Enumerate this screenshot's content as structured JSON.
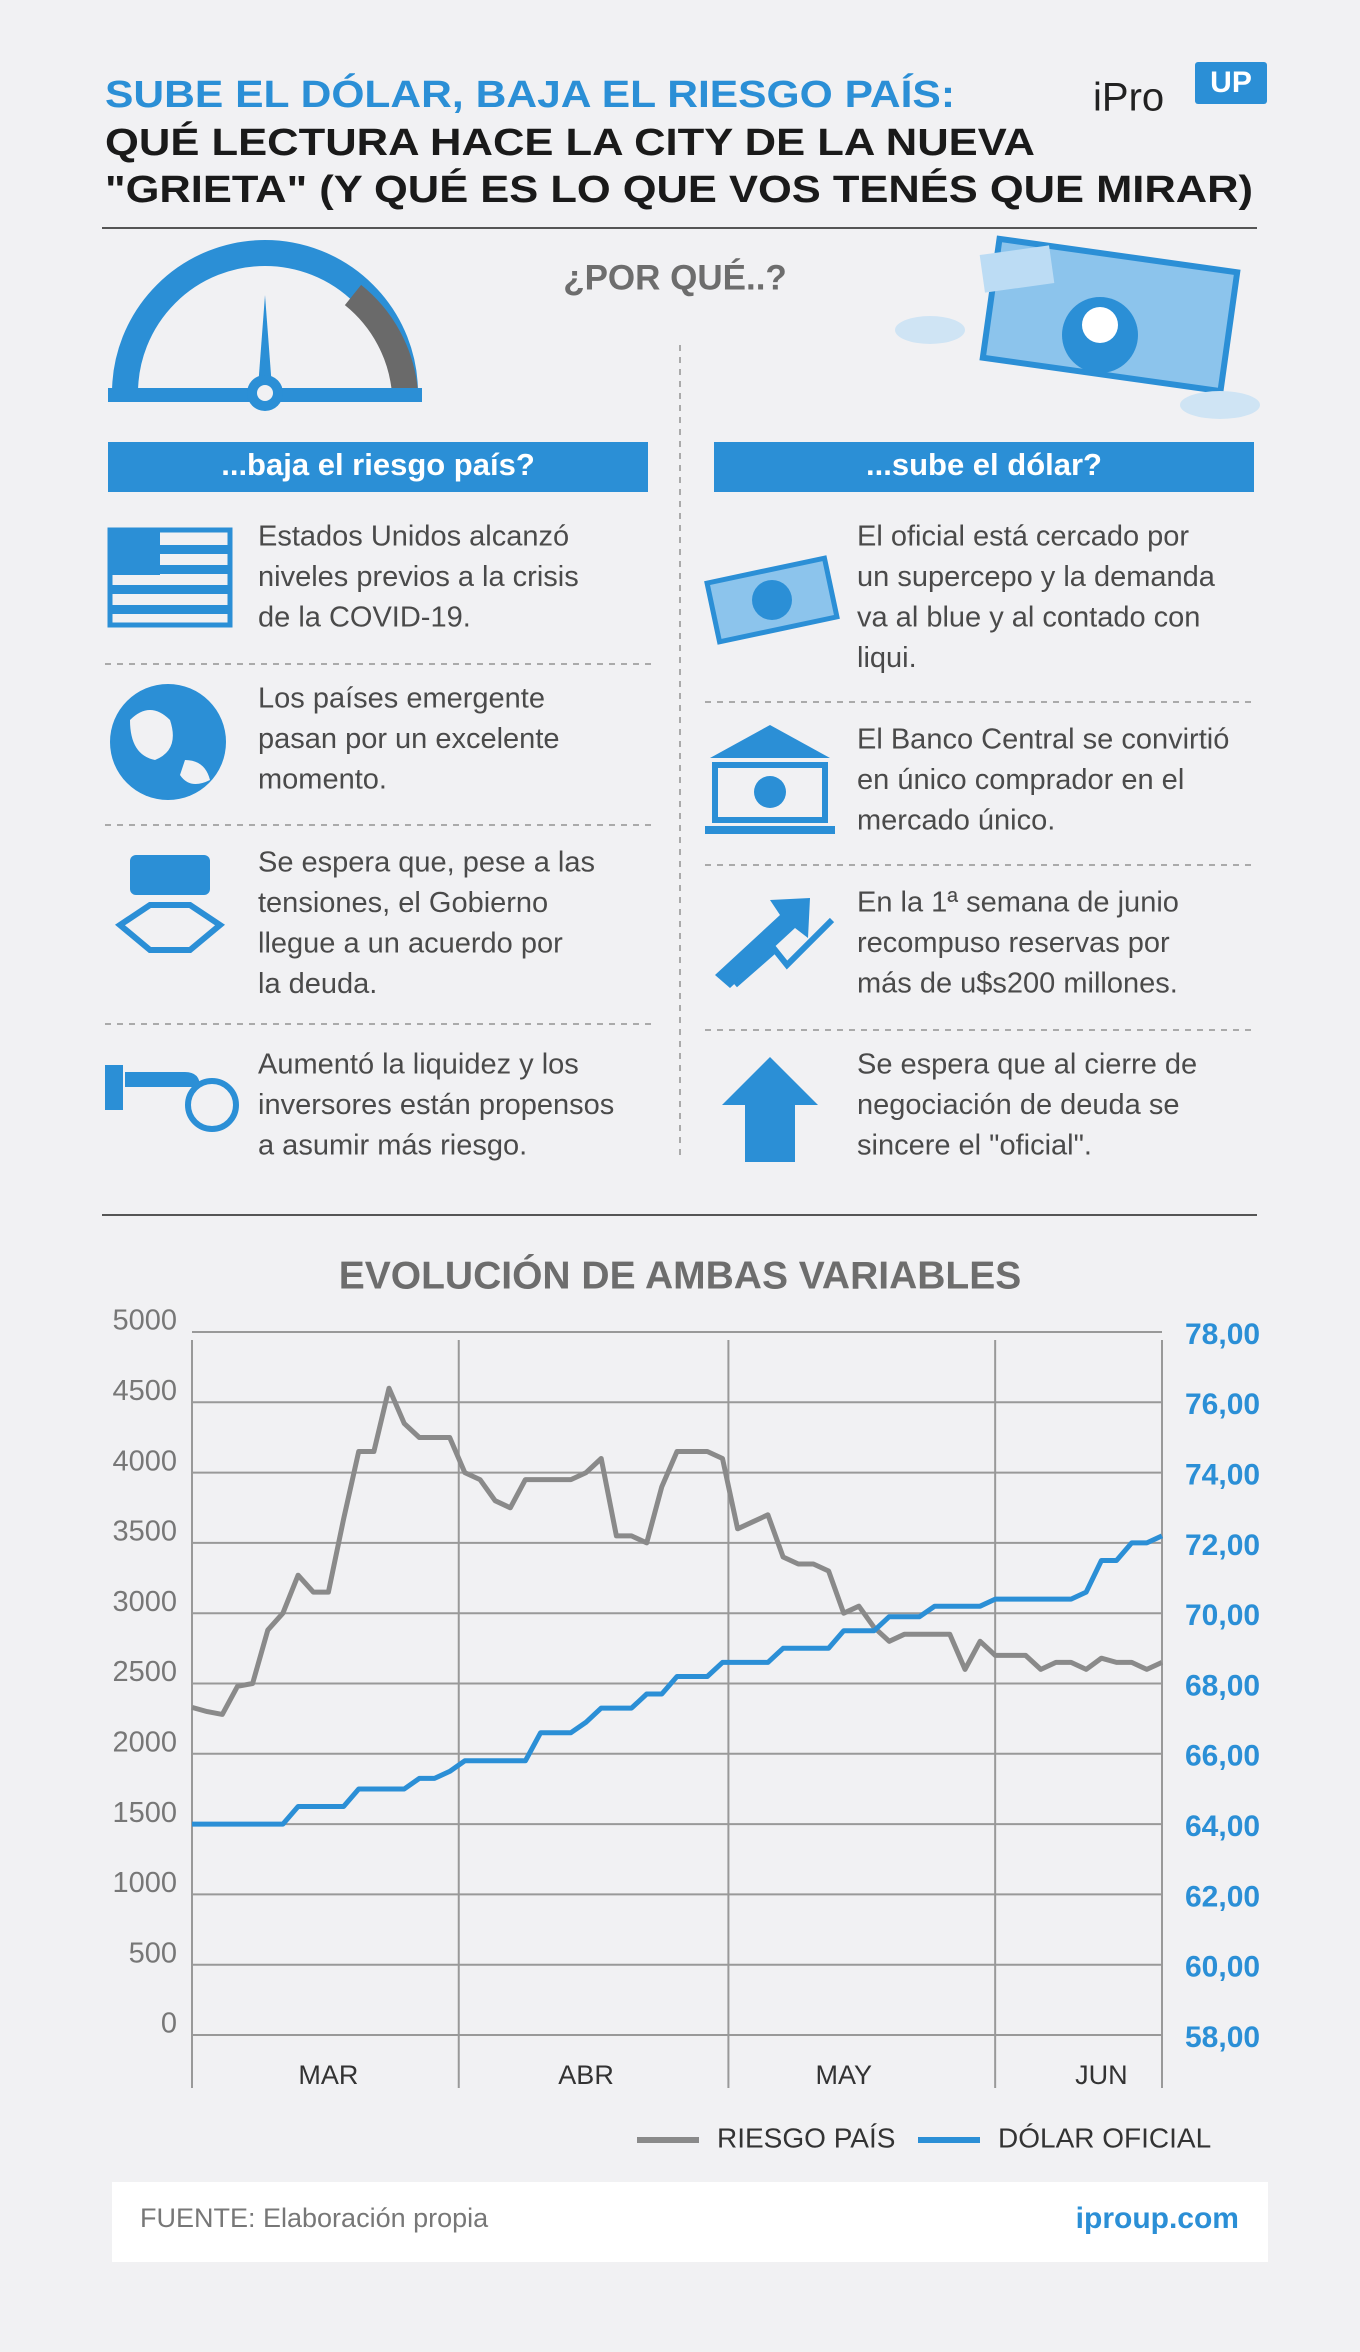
{
  "header": {
    "title_line1": "SUBE EL DÓLAR, BAJA EL RIESGO PAÍS:",
    "title_line2": "QUÉ LECTURA HACE LA CITY DE LA NUEVA",
    "title_line3": "\"GRIETA\" (Y QUÉ ES LO QUE VOS TENÉS QUE MIRAR)",
    "logo": "iPro",
    "logo_badge": "UP"
  },
  "question": "¿POR QUÉ..?",
  "left": {
    "heading": "...baja el riesgo país?",
    "items": [
      [
        "Estados Unidos alcanzó",
        "niveles previos a la crisis",
        "de la COVID-19."
      ],
      [
        "Los países emergente",
        "pasan por un excelente",
        "momento."
      ],
      [
        "Se espera que, pese a las",
        "tensiones, el Gobierno",
        "llegue a un acuerdo por",
        "la deuda."
      ],
      [
        "Aumentó la liquidez y los",
        "inversores están propensos",
        "a asumir más riesgo."
      ]
    ]
  },
  "right": {
    "heading": "...sube el dólar?",
    "items": [
      [
        "El oficial está cercado por",
        "un supercepo y la demanda",
        "va al blue y al contado con",
        "liqui."
      ],
      [
        "El Banco Central se convirtió",
        "en único comprador en el",
        "mercado único."
      ],
      [
        "En la 1ª semana de junio",
        "recompuso reservas por",
        "más de u$s200 millones."
      ],
      [
        "Se espera que al cierre de",
        "negociación de deuda se",
        "sincere el \"oficial\"."
      ]
    ]
  },
  "chart_data": {
    "type": "line",
    "title": "EVOLUCIÓN DE AMBAS VARIABLES",
    "categories": [
      null,
      null,
      null,
      null,
      null,
      null,
      null,
      null,
      null,
      "MAR",
      null,
      null,
      null,
      null,
      null,
      null,
      null,
      null,
      null,
      null,
      null,
      null,
      null,
      null,
      null,
      null,
      "ABR",
      null,
      null,
      null,
      null,
      null,
      null,
      null,
      null,
      null,
      null,
      null,
      null,
      null,
      null,
      null,
      null,
      "MAY",
      null,
      null,
      null,
      null,
      null,
      null,
      null,
      null,
      null,
      null,
      null,
      null,
      null,
      null,
      null,
      null,
      "JUN",
      null,
      null,
      null,
      null
    ],
    "ylim": [
      0,
      5000
    ],
    "yticks": [
      0,
      500,
      1000,
      1500,
      2000,
      2500,
      3000,
      3500,
      4000,
      4500,
      5000
    ],
    "y2lim": [
      58,
      78
    ],
    "y2ticks": [
      {
        "value": 58,
        "label": "58,00"
      },
      {
        "value": 60,
        "label": "60,00"
      },
      {
        "value": 62,
        "label": "62,00"
      },
      {
        "value": 64,
        "label": "64,00"
      },
      {
        "value": 66,
        "label": "66,00"
      },
      {
        "value": 68,
        "label": "68,00"
      },
      {
        "value": 70,
        "label": "70,00"
      },
      {
        "value": 72,
        "label": "72,00"
      },
      {
        "value": 74,
        "label": "74,00"
      },
      {
        "value": 76,
        "label": "76,00"
      },
      {
        "value": 78,
        "label": "78,00"
      }
    ],
    "grid": true,
    "legend": "bottom",
    "series": [
      {
        "name": "RIESGO PAÍS",
        "color": "#8a8a8a",
        "values": [
          2330,
          2300,
          2280,
          2480,
          2500,
          2880,
          3000,
          3270,
          3150,
          3150,
          3670,
          4150,
          4150,
          4600,
          4350,
          4250,
          4250,
          4250,
          4000,
          3950,
          3800,
          3750,
          3950,
          3950,
          3950,
          3950,
          4000,
          4100,
          3550,
          3550,
          3500,
          3900,
          4150,
          4150,
          4150,
          4100,
          3600,
          3650,
          3700,
          3400,
          3350,
          3350,
          3300,
          3000,
          3050,
          2900,
          2800,
          2850,
          2850,
          2850,
          2850,
          2600,
          2800,
          2700,
          2700,
          2700,
          2600,
          2650,
          2650,
          2600,
          2680,
          2650,
          2650,
          2600,
          2650
        ]
      },
      {
        "name": "DÓLAR OFICIAL",
        "color": "#2b8fd6",
        "axis": "y2",
        "values": [
          64,
          64,
          64,
          64,
          64,
          64,
          64,
          64.5,
          64.5,
          64.5,
          64.5,
          65,
          65,
          65,
          65,
          65.3,
          65.3,
          65.5,
          65.8,
          65.8,
          65.8,
          65.8,
          65.8,
          66.6,
          66.6,
          66.6,
          66.9,
          67.3,
          67.3,
          67.3,
          67.7,
          67.7,
          68.2,
          68.2,
          68.2,
          68.6,
          68.6,
          68.6,
          68.6,
          69,
          69,
          69,
          69,
          69.5,
          69.5,
          69.5,
          69.9,
          69.9,
          69.9,
          70.2,
          70.2,
          70.2,
          70.2,
          70.4,
          70.4,
          70.4,
          70.4,
          70.4,
          70.4,
          70.6,
          71.5,
          71.5,
          72,
          72,
          72.2
        ]
      }
    ]
  },
  "footer": {
    "source": "FUENTE: Elaboración propia",
    "site": "iproup.com"
  }
}
